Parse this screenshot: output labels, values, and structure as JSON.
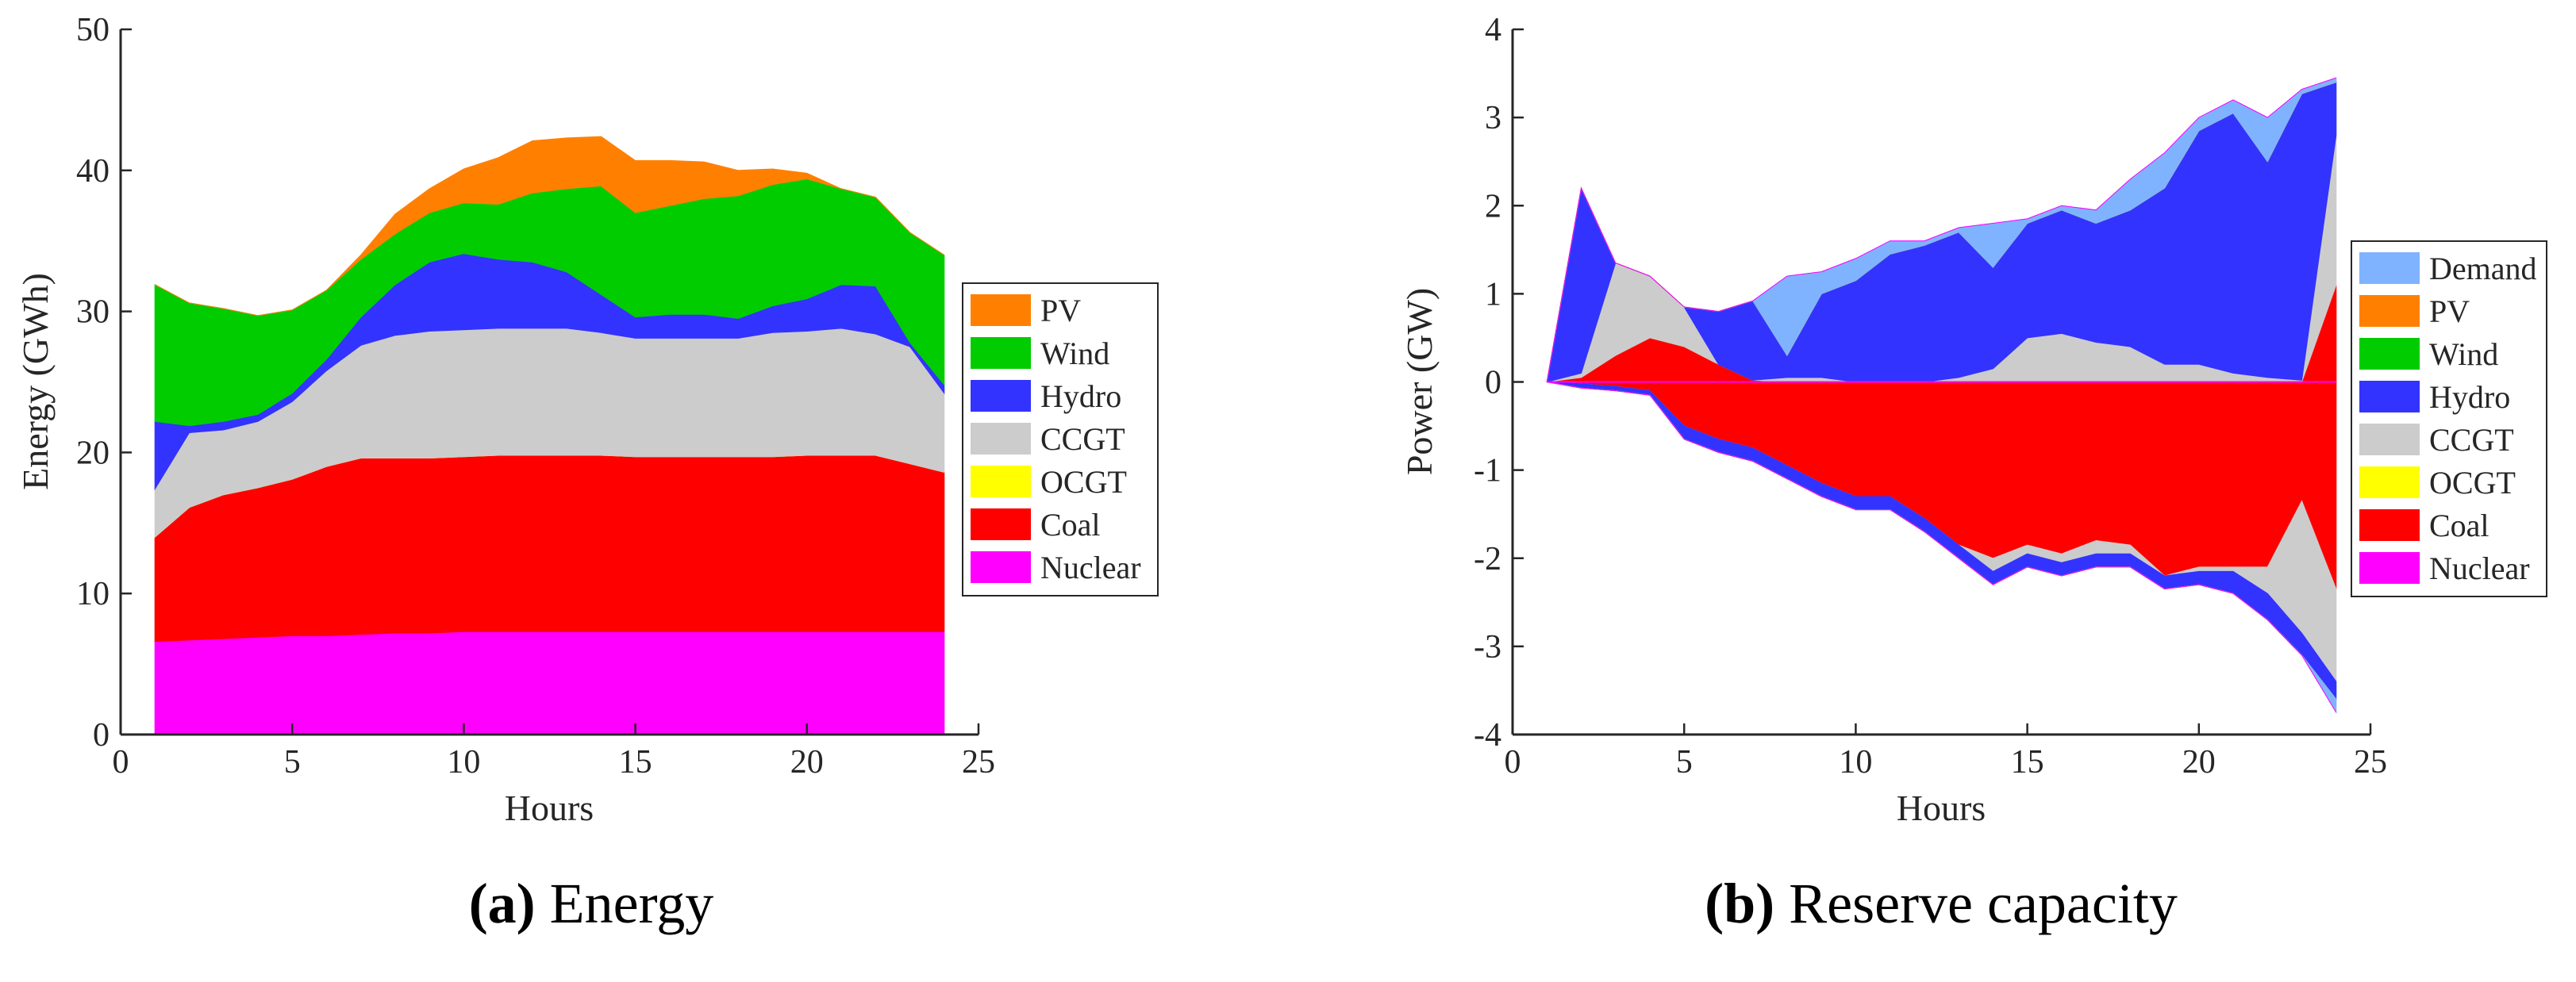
{
  "chart_data": [
    {
      "type": "area",
      "stacked": true,
      "caption_letter": "(a)",
      "caption_text": " Energy",
      "title": "",
      "xlabel": "Hours",
      "ylabel": "Energy (GWh)",
      "xlim": [
        0,
        25
      ],
      "ylim": [
        0,
        50
      ],
      "xticks": [
        0,
        5,
        10,
        15,
        20,
        25
      ],
      "yticks": [
        0,
        10,
        20,
        30,
        40,
        50
      ],
      "legend_position": "right",
      "legend_order": [
        "PV",
        "Wind",
        "Hydro",
        "CCGT",
        "OCGT",
        "Coal",
        "Nuclear"
      ],
      "x": [
        1,
        2,
        3,
        4,
        5,
        6,
        7,
        8,
        9,
        10,
        11,
        12,
        13,
        14,
        15,
        16,
        17,
        18,
        19,
        20,
        21,
        22,
        23,
        24
      ],
      "series": [
        {
          "name": "Nuclear",
          "color": "#ff00ff",
          "values": [
            6.6,
            6.7,
            6.8,
            6.9,
            7.0,
            7.0,
            7.1,
            7.2,
            7.2,
            7.3,
            7.3,
            7.3,
            7.3,
            7.3,
            7.3,
            7.3,
            7.3,
            7.3,
            7.3,
            7.3,
            7.3,
            7.3,
            7.3,
            7.3
          ]
        },
        {
          "name": "Coal",
          "color": "#ff0000",
          "values": [
            7.4,
            9.4,
            10.2,
            10.6,
            11.1,
            12.0,
            12.5,
            12.4,
            12.4,
            12.4,
            12.5,
            12.5,
            12.5,
            12.5,
            12.4,
            12.4,
            12.4,
            12.4,
            12.4,
            12.5,
            12.5,
            12.5,
            11.9,
            11.3
          ]
        },
        {
          "name": "OCGT",
          "color": "#ffff00",
          "values": [
            0,
            0,
            0,
            0,
            0,
            0,
            0,
            0,
            0,
            0,
            0,
            0,
            0,
            0,
            0,
            0,
            0,
            0,
            0,
            0,
            0,
            0,
            0,
            0
          ]
        },
        {
          "name": "CCGT",
          "color": "#cccccc",
          "values": [
            3.4,
            5.3,
            4.6,
            4.7,
            5.5,
            6.8,
            8.0,
            8.7,
            9.0,
            9.0,
            9.0,
            9.0,
            9.0,
            8.7,
            8.4,
            8.4,
            8.4,
            8.4,
            8.8,
            8.8,
            9.0,
            8.6,
            8.3,
            5.6
          ]
        },
        {
          "name": "Hydro",
          "color": "#3333ff",
          "values": [
            4.8,
            0.5,
            0.6,
            0.5,
            0.6,
            0.8,
            2.0,
            3.6,
            4.9,
            5.4,
            4.9,
            4.7,
            4.0,
            2.7,
            1.5,
            1.7,
            1.7,
            1.4,
            1.9,
            2.3,
            3.1,
            3.4,
            0.3,
            0.6
          ]
        },
        {
          "name": "Wind",
          "color": "#00cc00",
          "values": [
            9.7,
            8.7,
            8.0,
            7.0,
            5.9,
            4.9,
            4.1,
            3.6,
            3.5,
            3.6,
            3.9,
            4.9,
            5.9,
            7.7,
            7.4,
            7.7,
            8.2,
            8.7,
            8.6,
            8.5,
            6.8,
            6.3,
            7.8,
            9.2
          ]
        },
        {
          "name": "PV",
          "color": "#ff8000",
          "values": [
            0,
            0,
            0,
            0,
            0,
            0,
            0.3,
            1.4,
            1.7,
            2.4,
            3.3,
            3.7,
            3.6,
            3.5,
            3.7,
            3.2,
            2.6,
            1.8,
            1.1,
            0.4,
            0,
            0,
            0,
            0
          ]
        }
      ]
    },
    {
      "type": "area",
      "stacked": true,
      "caption_letter": "(b)",
      "caption_text": " Reserve capacity",
      "title": "",
      "xlabel": "Hours",
      "ylabel": "Power (GW)",
      "xlim": [
        0,
        25
      ],
      "ylim": [
        -4,
        4
      ],
      "xticks": [
        0,
        5,
        10,
        15,
        20,
        25
      ],
      "yticks": [
        -4,
        -3,
        -2,
        -1,
        0,
        1,
        2,
        3,
        4
      ],
      "legend_position": "right",
      "legend_order": [
        "Demand",
        "PV",
        "Wind",
        "Hydro",
        "CCGT",
        "OCGT",
        "Coal",
        "Nuclear"
      ],
      "x": [
        1,
        2,
        3,
        4,
        5,
        6,
        7,
        8,
        9,
        10,
        11,
        12,
        13,
        14,
        15,
        16,
        17,
        18,
        19,
        20,
        21,
        22,
        23,
        24
      ],
      "series": [
        {
          "name": "Coal",
          "color": "#ff0000",
          "up": [
            0,
            0.05,
            0.3,
            0.5,
            0.4,
            0.2,
            0.02,
            0,
            0,
            0,
            0,
            0,
            0,
            0,
            0,
            0,
            0,
            0,
            0,
            0,
            0,
            0,
            0,
            1.1
          ],
          "down": [
            0,
            -0.02,
            -0.05,
            -0.1,
            -0.5,
            -0.65,
            -0.75,
            -0.95,
            -1.15,
            -1.3,
            -1.3,
            -1.55,
            -1.85,
            -2.0,
            -1.85,
            -1.95,
            -1.8,
            -1.85,
            -2.2,
            -2.1,
            -2.1,
            -2.1,
            -1.35,
            -2.35
          ]
        },
        {
          "name": "CCGT",
          "color": "#cccccc",
          "up": [
            0,
            0.05,
            1.05,
            0.7,
            0.45,
            0,
            0,
            0.05,
            0.05,
            0,
            0,
            0,
            0.05,
            0.15,
            0.5,
            0.55,
            0.45,
            0.4,
            0.2,
            0.2,
            0.1,
            0.05,
            0.02,
            1.7
          ],
          "down": [
            0,
            0,
            0,
            0,
            0,
            0,
            0,
            0,
            0,
            0,
            0,
            0,
            0,
            -0.15,
            -0.1,
            -0.1,
            -0.15,
            -0.1,
            0,
            -0.05,
            -0.05,
            -0.3,
            -1.5,
            -1.05
          ]
        },
        {
          "name": "Hydro",
          "color": "#3333ff",
          "up": [
            0,
            2.1,
            0,
            0,
            0,
            0.6,
            0.9,
            0.25,
            0.95,
            1.15,
            1.45,
            1.55,
            1.65,
            1.15,
            1.3,
            1.4,
            1.35,
            1.55,
            2.0,
            2.65,
            2.95,
            2.45,
            3.25,
            0.6
          ],
          "down": [
            0,
            -0.05,
            -0.05,
            -0.05,
            -0.15,
            -0.15,
            -0.15,
            -0.15,
            -0.15,
            -0.15,
            -0.15,
            -0.15,
            -0.15,
            -0.15,
            -0.15,
            -0.15,
            -0.15,
            -0.15,
            -0.15,
            -0.15,
            -0.25,
            -0.3,
            -0.25,
            -0.2
          ]
        },
        {
          "name": "OCGT",
          "color": "#ffff00",
          "up": [
            0,
            0,
            0,
            0,
            0,
            0,
            0,
            0,
            0,
            0,
            0,
            0,
            0,
            0,
            0,
            0,
            0,
            0,
            0,
            0,
            0,
            0,
            0,
            0
          ],
          "down": [
            0,
            0,
            0,
            0,
            0,
            0,
            0,
            0,
            0,
            0,
            0,
            0,
            0,
            0,
            0,
            0,
            0,
            0,
            0,
            0,
            0,
            0,
            0,
            0
          ]
        },
        {
          "name": "Wind",
          "color": "#00cc00",
          "up": [
            0,
            0,
            0,
            0,
            0,
            0,
            0,
            0,
            0,
            0,
            0,
            0,
            0,
            0,
            0,
            0,
            0,
            0,
            0,
            0,
            0,
            0,
            0,
            0
          ],
          "down": [
            0,
            0,
            0,
            0,
            0,
            0,
            0,
            0,
            0,
            0,
            0,
            0,
            0,
            0,
            0,
            0,
            0,
            0,
            0,
            0,
            0,
            0,
            0,
            0
          ]
        },
        {
          "name": "PV",
          "color": "#ff8000",
          "up": [
            0,
            0,
            0,
            0,
            0,
            0,
            0,
            0,
            0,
            0,
            0,
            0,
            0,
            0,
            0,
            0,
            0,
            0,
            0,
            0,
            0,
            0,
            0,
            0
          ],
          "down": [
            0,
            0,
            0,
            0,
            0,
            0,
            0,
            0,
            0,
            0,
            0,
            0,
            0,
            0,
            0,
            0,
            0,
            0,
            0,
            0,
            0,
            0,
            0,
            0
          ]
        },
        {
          "name": "Demand",
          "color": "#80b3ff",
          "up": [
            0,
            0,
            0,
            0,
            0,
            0,
            0,
            0.9,
            0.25,
            0.25,
            0.15,
            0.05,
            0.05,
            0.5,
            0.05,
            0.05,
            0.15,
            0.35,
            0.4,
            0.15,
            0.15,
            0.5,
            0.05,
            0.05
          ],
          "down": [
            0,
            0,
            0,
            0,
            0,
            0,
            0,
            0,
            0,
            0,
            0,
            0,
            0,
            0,
            0,
            0,
            0,
            0,
            0,
            0,
            0,
            0,
            0,
            -0.15
          ]
        },
        {
          "name": "Nuclear",
          "color": "#ff00ff",
          "up": [
            0,
            0,
            0,
            0,
            0,
            0,
            0,
            0,
            0,
            0,
            0,
            0,
            0,
            0,
            0,
            0,
            0,
            0,
            0,
            0,
            0,
            0,
            0,
            0
          ],
          "down": [
            0,
            0,
            0,
            0,
            0,
            0,
            0,
            0,
            0,
            0,
            0,
            0,
            0,
            0,
            0,
            0,
            0,
            0,
            0,
            0,
            0,
            0,
            0,
            0
          ]
        }
      ]
    }
  ]
}
